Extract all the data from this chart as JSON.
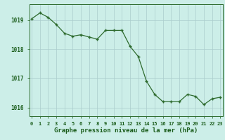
{
  "hours": [
    0,
    1,
    2,
    3,
    4,
    5,
    6,
    7,
    8,
    9,
    10,
    11,
    12,
    13,
    14,
    15,
    16,
    17,
    18,
    19,
    20,
    21,
    22,
    23
  ],
  "pressure": [
    1019.05,
    1019.25,
    1019.1,
    1018.85,
    1018.55,
    1018.45,
    1018.5,
    1018.42,
    1018.35,
    1018.65,
    1018.65,
    1018.65,
    1018.1,
    1017.75,
    1016.9,
    1016.45,
    1016.2,
    1016.2,
    1016.2,
    1016.45,
    1016.38,
    1016.1,
    1016.3,
    1016.35
  ],
  "ylim": [
    1015.7,
    1019.55
  ],
  "yticks": [
    1016,
    1017,
    1018,
    1019
  ],
  "xlabel": "Graphe pression niveau de la mer (hPa)",
  "line_color": "#2d6a2d",
  "marker_color": "#2d6a2d",
  "bg_color": "#cceee8",
  "grid_color": "#aacccc",
  "axis_color": "#2d6a2d",
  "label_color": "#1a5c1a",
  "tick_fontsize": 5.0,
  "ytick_fontsize": 5.5,
  "xlabel_fontsize": 6.5
}
